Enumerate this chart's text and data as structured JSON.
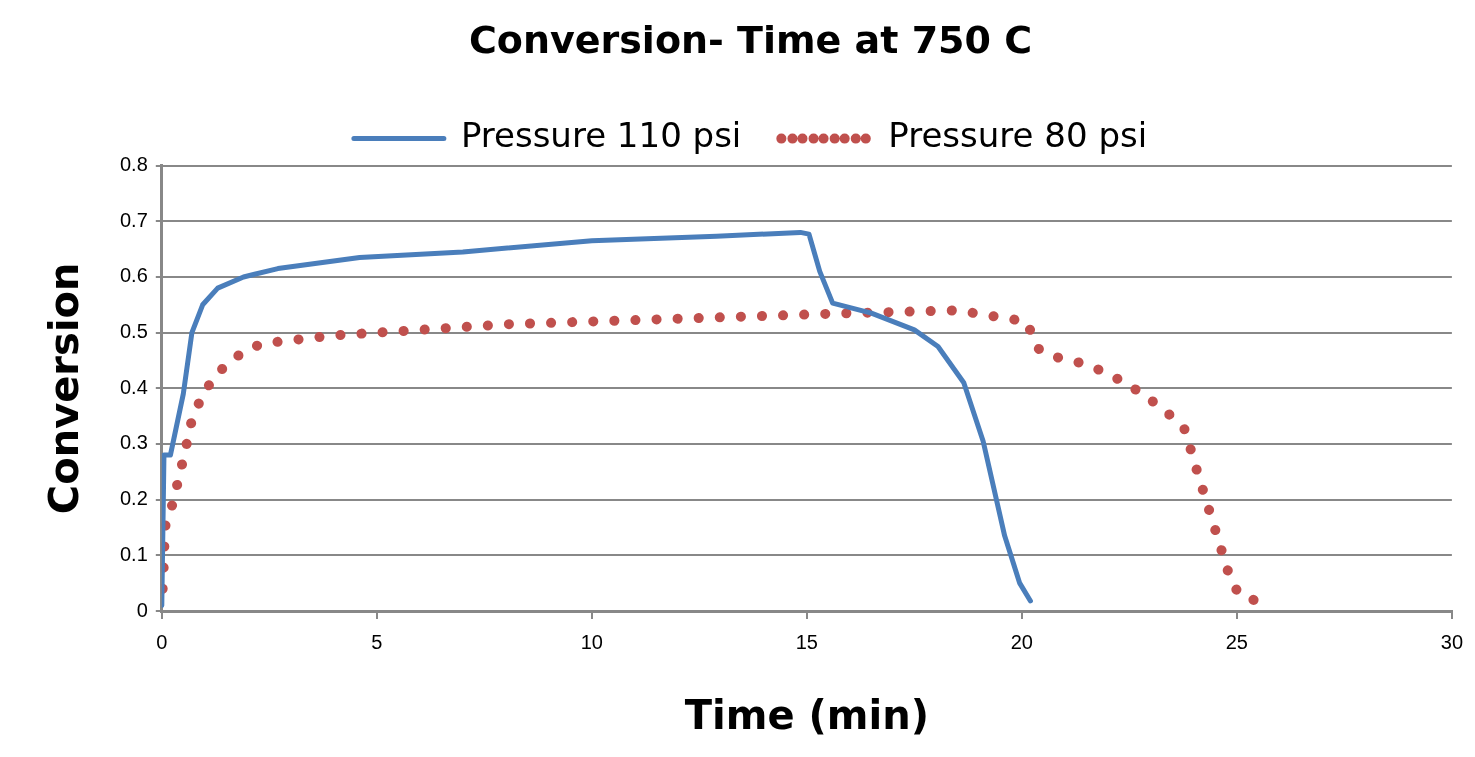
{
  "chart_data": {
    "type": "line",
    "title": "Conversion- Time at 750 C",
    "xlabel": "Time (min)",
    "ylabel": "Conversion",
    "xlim": [
      0,
      30
    ],
    "xticks": [
      0,
      5,
      10,
      15,
      20,
      25,
      30
    ],
    "ylim": [
      0,
      0.8
    ],
    "yticks": [
      0,
      0.1,
      0.2,
      0.3,
      0.4,
      0.5,
      0.6,
      0.7,
      0.8
    ],
    "grid": "y",
    "legend": "top",
    "marker": "none",
    "series": [
      {
        "name": "Pressure 110 psi",
        "color": "#4a7ebb",
        "line_style": "solid",
        "x": [
          0,
          0.05,
          0.2,
          0.5,
          0.7,
          0.95,
          1.3,
          1.9,
          2.7,
          4.6,
          7,
          10,
          12.9,
          14.85,
          15.05,
          15.3,
          15.6,
          16.5,
          17.5,
          18.05,
          18.65,
          19.1,
          19.6,
          19.95,
          20.2
        ],
        "values": [
          0.01,
          0.28,
          0.28,
          0.39,
          0.5,
          0.55,
          0.58,
          0.6,
          0.615,
          0.635,
          0.645,
          0.665,
          0.673,
          0.68,
          0.677,
          0.61,
          0.553,
          0.535,
          0.505,
          0.475,
          0.41,
          0.305,
          0.135,
          0.05,
          0.018
        ]
      },
      {
        "name": "Pressure 80 psi",
        "color": "#c0504d",
        "line_style": "dotted",
        "x": [
          0.02,
          0.05,
          0.07,
          0.24,
          0.4,
          0.55,
          0.69,
          0.95,
          1.33,
          1.8,
          2.3,
          4,
          6,
          8,
          10,
          12,
          14,
          16,
          18.5,
          20.1,
          20.4,
          20.85,
          21.4,
          21.9,
          22.4,
          22.9,
          23.4,
          23.8,
          24,
          24.2,
          24.4,
          24.6,
          24.8,
          25.04,
          25.56
        ],
        "values": [
          0.04,
          0.09,
          0.15,
          0.19,
          0.24,
          0.29,
          0.34,
          0.39,
          0.43,
          0.46,
          0.48,
          0.495,
          0.505,
          0.515,
          0.52,
          0.525,
          0.53,
          0.535,
          0.54,
          0.52,
          0.47,
          0.455,
          0.445,
          0.43,
          0.41,
          0.385,
          0.355,
          0.325,
          0.27,
          0.22,
          0.17,
          0.12,
          0.07,
          0.03,
          0.015
        ]
      }
    ]
  }
}
